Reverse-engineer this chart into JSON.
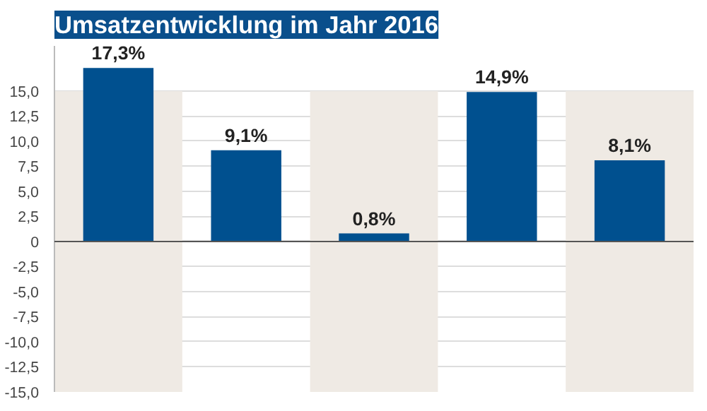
{
  "chart_data": {
    "type": "bar",
    "title": "Umsatzentwicklung im Jahr 2016",
    "categories": [
      null,
      null,
      null,
      null,
      null
    ],
    "values": [
      17.3,
      9.1,
      0.8,
      14.9,
      8.1
    ],
    "value_labels": [
      "17,3%",
      "9,1%",
      "0,8%",
      "14,9%",
      "8,1%"
    ],
    "color": "#00508f",
    "ylim": [
      -15,
      19.5
    ],
    "yticks": [
      {
        "value": -15,
        "label": "-15,0"
      },
      {
        "value": -12.5,
        "label": "-12,5"
      },
      {
        "value": -10,
        "label": "-10,0"
      },
      {
        "value": -7.5,
        "label": "-7,5"
      },
      {
        "value": -5,
        "label": "-5,0"
      },
      {
        "value": -2.5,
        "label": "-2,5"
      },
      0,
      {
        "value": 2.5,
        "label": "2,5"
      },
      {
        "value": 5,
        "label": "5,0"
      },
      {
        "value": 7.5,
        "label": "7,5"
      },
      {
        "value": 10,
        "label": "10,0"
      },
      {
        "value": 12.5,
        "label": "12,5"
      },
      {
        "value": 15,
        "label": "15,0"
      }
    ],
    "grid": "y"
  }
}
